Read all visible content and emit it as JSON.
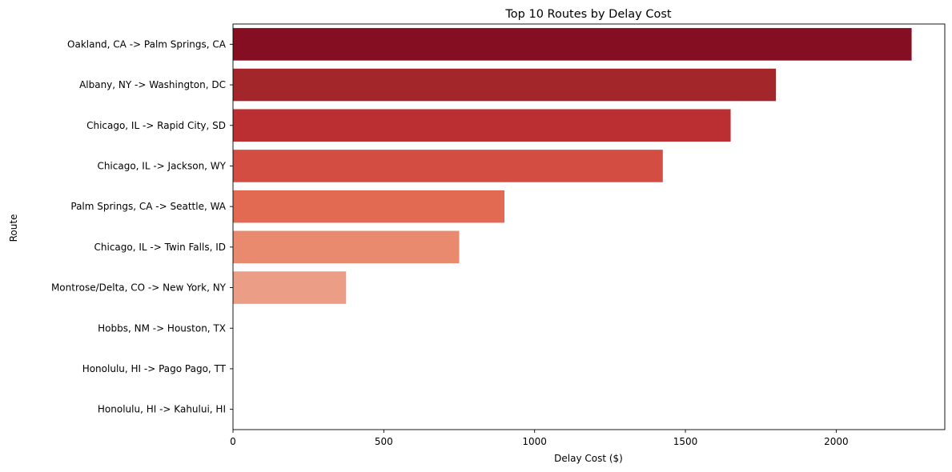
{
  "chart_data": {
    "type": "bar",
    "orientation": "horizontal",
    "title": "Top 10 Routes by Delay Cost",
    "xlabel": "Delay Cost ($)",
    "ylabel": "Route",
    "xlim": [
      0,
      2360
    ],
    "xticks": [
      0,
      500,
      1000,
      1500,
      2000
    ],
    "xtick_labels": [
      "0",
      "500",
      "1000",
      "1500",
      "2000"
    ],
    "grid": false,
    "legend": "none",
    "categories": [
      "Oakland, CA -> Palm Springs, CA",
      "Albany, NY -> Washington, DC",
      "Chicago, IL -> Rapid City, SD",
      "Chicago, IL -> Jackson, WY",
      "Palm Springs, CA -> Seattle, WA",
      "Chicago, IL -> Twin Falls, ID",
      "Montrose/Delta, CO -> New York, NY",
      "Hobbs, NM -> Houston, TX",
      "Honolulu, HI -> Pago Pago, TT",
      "Honolulu, HI -> Kahului, HI"
    ],
    "values": [
      2250,
      1800,
      1650,
      1425,
      900,
      750,
      375,
      0,
      0,
      0
    ],
    "colors": [
      "#860e23",
      "#a3262b",
      "#bb2f32",
      "#d44d42",
      "#e36a52",
      "#e98a6f",
      "#eb9e85",
      "#f1b8a2",
      "#f7d3c4",
      "#fcebe1"
    ]
  }
}
